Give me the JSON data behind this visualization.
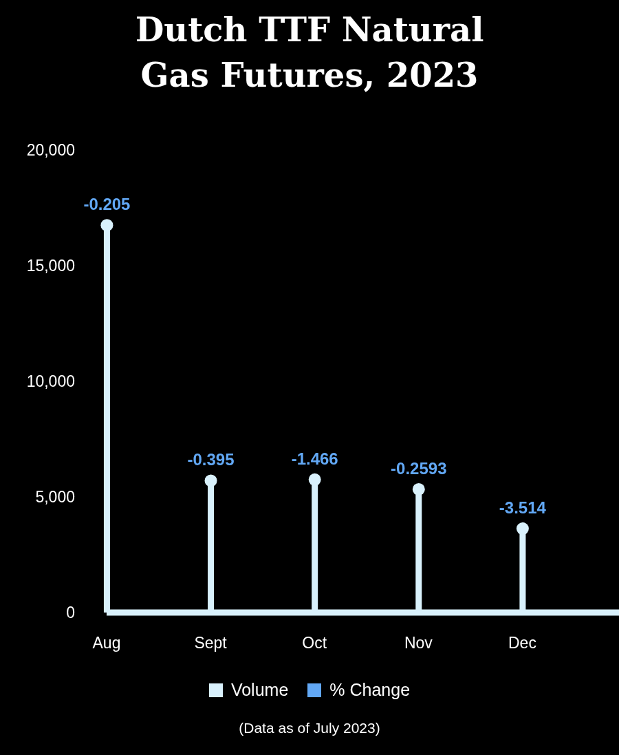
{
  "chart_data": {
    "type": "lollipop",
    "title": "Dutch TTF Natural Gas Futures, 2023",
    "categories": [
      "Aug",
      "Sept",
      "Oct",
      "Nov",
      "Dec"
    ],
    "series": [
      {
        "name": "Volume",
        "color": "#d9f1fc",
        "values": [
          16750,
          5700,
          5750,
          5330,
          3630
        ]
      },
      {
        "name": "% Change",
        "color": "#62a8f5",
        "values": [
          null,
          null,
          null,
          null,
          null
        ],
        "value_labels": [
          "-0.205",
          "-0.395",
          "-1.466",
          "-0.2593",
          "-3.514"
        ]
      }
    ],
    "ylim": [
      0,
      20000
    ],
    "yticks": [
      {
        "value": 0,
        "label": "0"
      },
      {
        "value": 5000,
        "label": "5,000"
      },
      {
        "value": 10000,
        "label": "10,000"
      },
      {
        "value": 15000,
        "label": "15,000"
      },
      {
        "value": 20000,
        "label": "20,000"
      }
    ],
    "grid": false,
    "legend": "bottom",
    "marker": "circle",
    "annotations": [
      "(Data as of July 2023)"
    ]
  }
}
